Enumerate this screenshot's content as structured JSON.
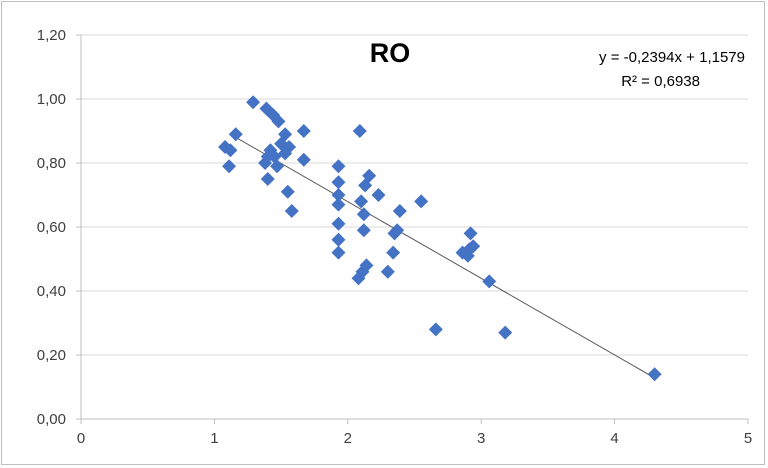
{
  "chart_data": {
    "type": "scatter",
    "title": "RO",
    "xlabel": "",
    "ylabel": "",
    "xlim": [
      0,
      5
    ],
    "ylim": [
      0,
      1.2
    ],
    "x_ticks": [
      "0",
      "1",
      "2",
      "3",
      "4",
      "5"
    ],
    "y_ticks": [
      "0,00",
      "0,20",
      "0,40",
      "0,60",
      "0,80",
      "1,00",
      "1,20"
    ],
    "grid": "horizontal",
    "marker": "diamond",
    "colors": {
      "marker": "#4472c4",
      "trendline": "#595959",
      "grid": "#d9d9d9"
    },
    "trendline": {
      "type": "linear",
      "slope": -0.2394,
      "intercept": 1.1579,
      "x_range": [
        1.15,
        4.3
      ],
      "equation_label": "y = -0,2394x + 1,1579",
      "r2_label": "R² = 0,6938"
    },
    "points": [
      {
        "x": 1.08,
        "y": 0.85
      },
      {
        "x": 1.12,
        "y": 0.84
      },
      {
        "x": 1.11,
        "y": 0.79
      },
      {
        "x": 1.16,
        "y": 0.89
      },
      {
        "x": 1.29,
        "y": 0.99
      },
      {
        "x": 1.39,
        "y": 0.97
      },
      {
        "x": 1.44,
        "y": 0.95
      },
      {
        "x": 1.48,
        "y": 0.93
      },
      {
        "x": 1.38,
        "y": 0.8
      },
      {
        "x": 1.4,
        "y": 0.82
      },
      {
        "x": 1.42,
        "y": 0.84
      },
      {
        "x": 1.45,
        "y": 0.82
      },
      {
        "x": 1.4,
        "y": 0.75
      },
      {
        "x": 1.47,
        "y": 0.79
      },
      {
        "x": 1.5,
        "y": 0.86
      },
      {
        "x": 1.53,
        "y": 0.89
      },
      {
        "x": 1.53,
        "y": 0.83
      },
      {
        "x": 1.56,
        "y": 0.85
      },
      {
        "x": 1.55,
        "y": 0.71
      },
      {
        "x": 1.58,
        "y": 0.65
      },
      {
        "x": 1.67,
        "y": 0.9
      },
      {
        "x": 1.67,
        "y": 0.81
      },
      {
        "x": 1.93,
        "y": 0.79
      },
      {
        "x": 1.93,
        "y": 0.74
      },
      {
        "x": 1.93,
        "y": 0.7
      },
      {
        "x": 1.93,
        "y": 0.67
      },
      {
        "x": 1.93,
        "y": 0.61
      },
      {
        "x": 1.93,
        "y": 0.56
      },
      {
        "x": 1.93,
        "y": 0.52
      },
      {
        "x": 2.09,
        "y": 0.9
      },
      {
        "x": 2.1,
        "y": 0.68
      },
      {
        "x": 2.12,
        "y": 0.64
      },
      {
        "x": 2.12,
        "y": 0.59
      },
      {
        "x": 2.13,
        "y": 0.73
      },
      {
        "x": 2.16,
        "y": 0.76
      },
      {
        "x": 2.08,
        "y": 0.44
      },
      {
        "x": 2.11,
        "y": 0.46
      },
      {
        "x": 2.14,
        "y": 0.48
      },
      {
        "x": 2.23,
        "y": 0.7
      },
      {
        "x": 2.3,
        "y": 0.46
      },
      {
        "x": 2.34,
        "y": 0.52
      },
      {
        "x": 2.35,
        "y": 0.58
      },
      {
        "x": 2.37,
        "y": 0.59
      },
      {
        "x": 2.39,
        "y": 0.65
      },
      {
        "x": 2.55,
        "y": 0.68
      },
      {
        "x": 2.66,
        "y": 0.28
      },
      {
        "x": 2.86,
        "y": 0.52
      },
      {
        "x": 2.9,
        "y": 0.51
      },
      {
        "x": 2.91,
        "y": 0.53
      },
      {
        "x": 2.92,
        "y": 0.58
      },
      {
        "x": 2.94,
        "y": 0.54
      },
      {
        "x": 3.06,
        "y": 0.43
      },
      {
        "x": 3.18,
        "y": 0.27
      },
      {
        "x": 4.3,
        "y": 0.14
      }
    ]
  }
}
